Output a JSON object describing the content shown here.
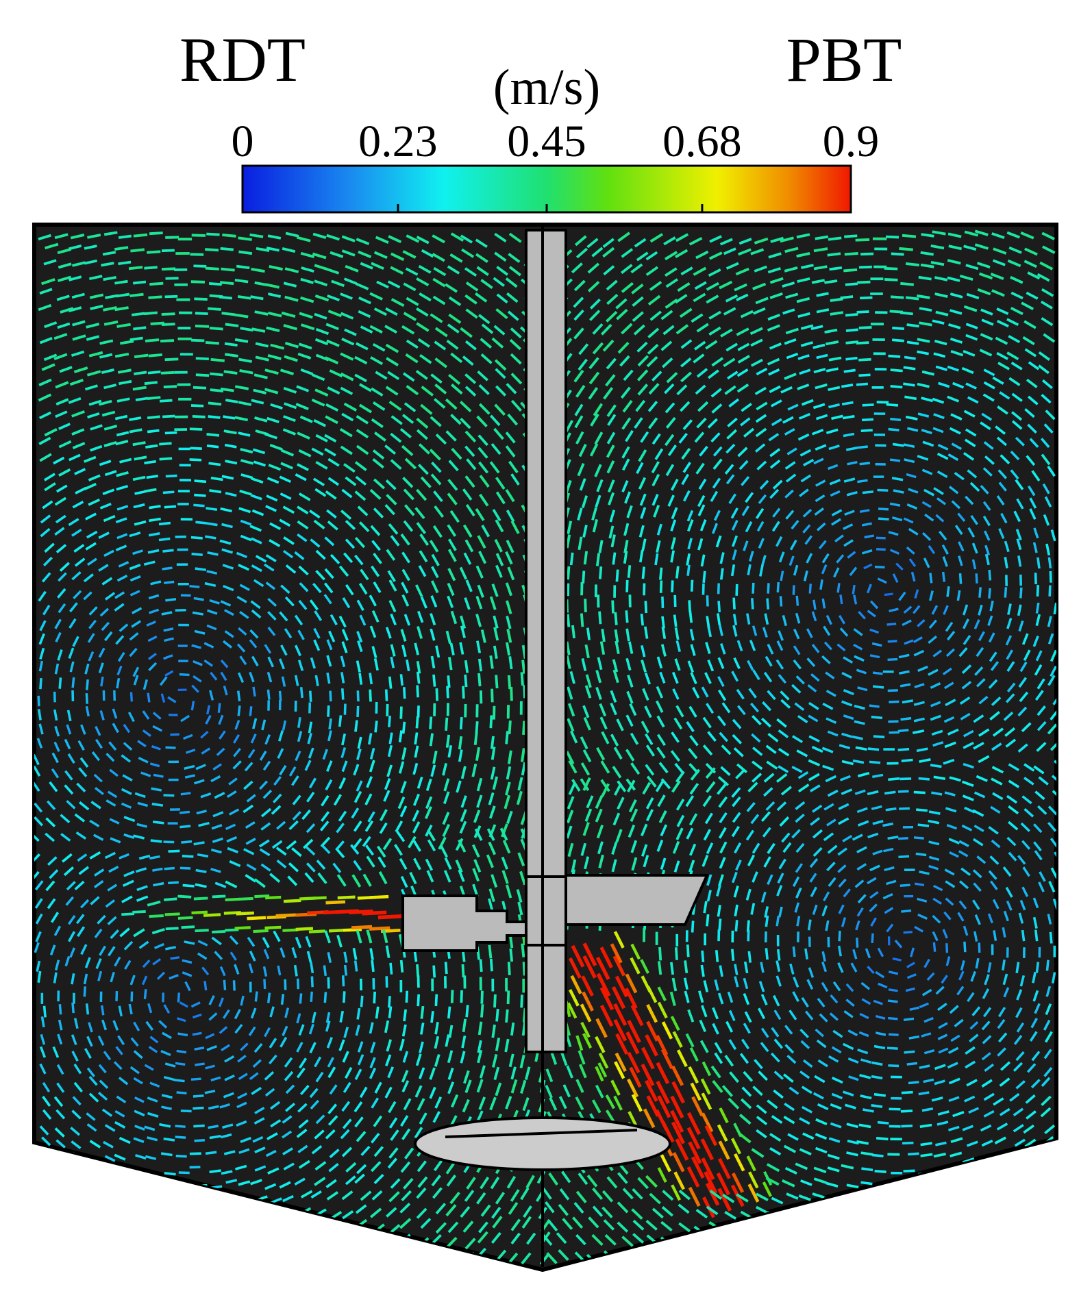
{
  "label_left": "RDT",
  "label_right": "PBT",
  "colorbar": {
    "unit": "(m/s)",
    "range": [
      0,
      0.9
    ],
    "ticks": [
      0,
      0.23,
      0.45,
      0.68,
      0.9
    ]
  }
}
